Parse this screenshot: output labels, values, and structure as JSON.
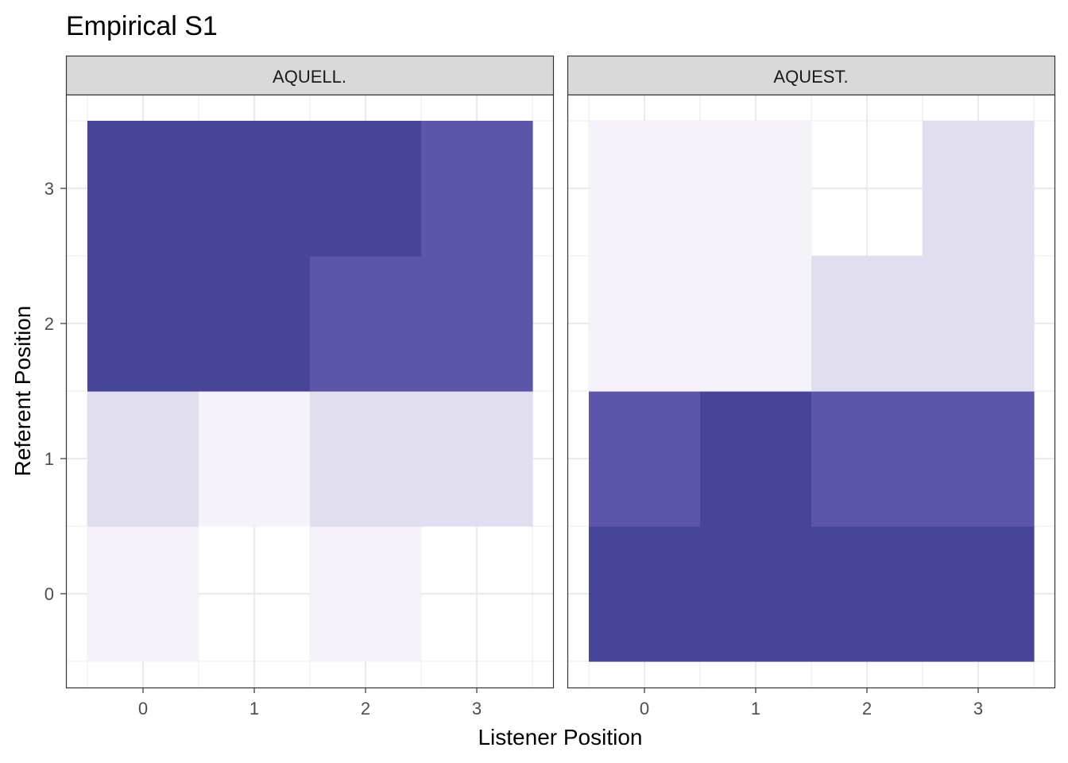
{
  "chart_data": {
    "type": "heatmap",
    "title": "Empirical S1",
    "xlabel": "Listener Position",
    "ylabel": "Referent Position",
    "x_ticks": [
      0,
      1,
      2,
      3
    ],
    "y_ticks": [
      0,
      1,
      2,
      3
    ],
    "xlim": [
      -0.5,
      3.5
    ],
    "ylim": [
      -0.5,
      3.5
    ],
    "grid": true,
    "legend": "none",
    "color_levels": {
      "0": "#ffffff",
      "1": "#f5f2f9",
      "2": "#e1def0",
      "3": "#5d55a9",
      "4": "#48449a"
    },
    "facets": [
      {
        "label": "AQUELL.",
        "rows": [
          {
            "y": 0,
            "levels": [
              1,
              0,
              1,
              0
            ]
          },
          {
            "y": 1,
            "levels": [
              2,
              1,
              2,
              2
            ]
          },
          {
            "y": 2,
            "levels": [
              4,
              4,
              3,
              3
            ]
          },
          {
            "y": 3,
            "levels": [
              4,
              4,
              4,
              3
            ]
          }
        ]
      },
      {
        "label": "AQUEST.",
        "rows": [
          {
            "y": 0,
            "levels": [
              4,
              4,
              4,
              4
            ]
          },
          {
            "y": 1,
            "levels": [
              3,
              4,
              3,
              3
            ]
          },
          {
            "y": 2,
            "levels": [
              1,
              1,
              2,
              2
            ]
          },
          {
            "y": 3,
            "levels": [
              1,
              1,
              0,
              2
            ]
          }
        ]
      }
    ]
  }
}
